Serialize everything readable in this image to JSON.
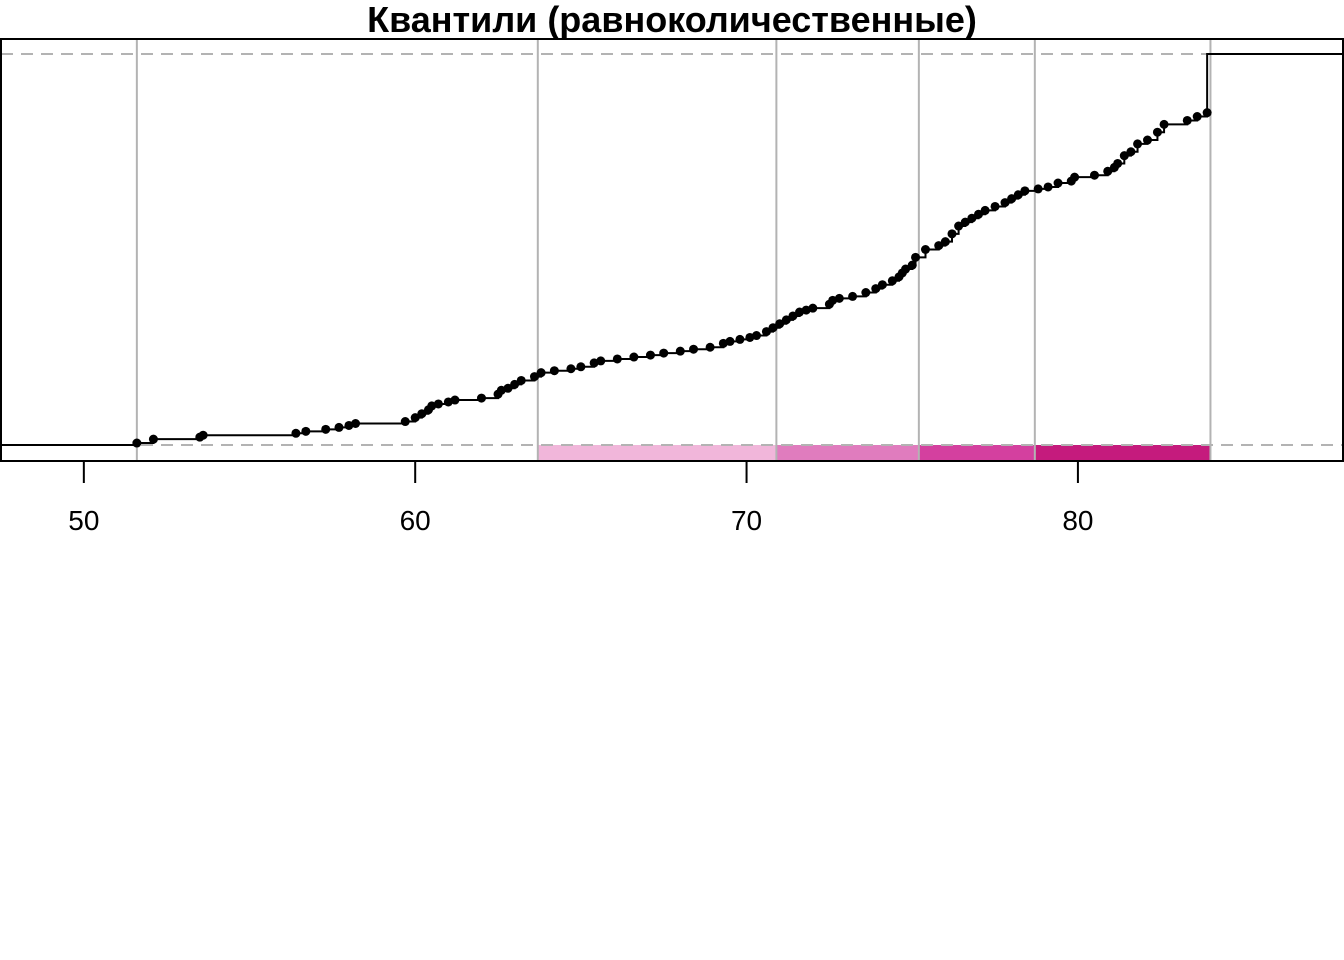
{
  "chart_data": {
    "type": "line",
    "title": "Квантили (равноколичественные)",
    "xlabel": "",
    "ylabel": "",
    "xlim": [
      47.5,
      88.0
    ],
    "ylim": [
      0,
      1
    ],
    "x_ticks": [
      50,
      60,
      70,
      80
    ],
    "x_tick_labels": [
      "50",
      "60",
      "70",
      "80"
    ],
    "grid": false,
    "legend": "none",
    "series": [
      {
        "style": "step-ecdf",
        "color": "#000000",
        "x": [
          51.6,
          52.1,
          53.5,
          53.6,
          56.4,
          56.7,
          57.3,
          57.7,
          58.0,
          58.2,
          59.7,
          60.0,
          60.2,
          60.4,
          60.5,
          60.7,
          61.0,
          61.2,
          62.0,
          62.5,
          62.6,
          62.8,
          63.0,
          63.2,
          63.6,
          63.8,
          64.2,
          64.7,
          65.0,
          65.4,
          65.6,
          66.1,
          66.6,
          67.1,
          67.5,
          68.0,
          68.4,
          68.9,
          69.3,
          69.5,
          69.8,
          70.1,
          70.3,
          70.6,
          70.8,
          71.0,
          71.2,
          71.4,
          71.6,
          71.8,
          72.0,
          72.5,
          72.6,
          72.8,
          73.2,
          73.6,
          73.9,
          74.1,
          74.4,
          74.6,
          74.7,
          74.8,
          75.0,
          75.1,
          75.4,
          75.8,
          76.0,
          76.2,
          76.4,
          76.6,
          76.8,
          77.0,
          77.2,
          77.5,
          77.8,
          78.0,
          78.2,
          78.4,
          78.8,
          79.1,
          79.4,
          79.8,
          79.9,
          80.5,
          80.9,
          81.1,
          81.2,
          81.4,
          81.6,
          81.8,
          82.1,
          82.4,
          82.6,
          83.3,
          83.6,
          83.9
        ],
        "y": [
          0.005,
          0.015,
          0.02,
          0.025,
          0.03,
          0.035,
          0.04,
          0.045,
          0.05,
          0.055,
          0.06,
          0.07,
          0.08,
          0.09,
          0.1,
          0.105,
          0.11,
          0.115,
          0.12,
          0.13,
          0.14,
          0.145,
          0.155,
          0.165,
          0.175,
          0.185,
          0.19,
          0.195,
          0.2,
          0.21,
          0.215,
          0.22,
          0.225,
          0.23,
          0.235,
          0.24,
          0.245,
          0.25,
          0.26,
          0.265,
          0.27,
          0.275,
          0.28,
          0.29,
          0.3,
          0.31,
          0.32,
          0.33,
          0.34,
          0.345,
          0.35,
          0.36,
          0.37,
          0.375,
          0.38,
          0.39,
          0.4,
          0.41,
          0.42,
          0.43,
          0.44,
          0.45,
          0.46,
          0.48,
          0.5,
          0.51,
          0.52,
          0.54,
          0.56,
          0.57,
          0.58,
          0.59,
          0.6,
          0.61,
          0.62,
          0.63,
          0.64,
          0.65,
          0.655,
          0.66,
          0.67,
          0.675,
          0.685,
          0.69,
          0.7,
          0.71,
          0.72,
          0.74,
          0.75,
          0.77,
          0.78,
          0.8,
          0.82,
          0.83,
          0.84,
          0.85
        ]
      }
    ],
    "quantile_breaks": [
      51.6,
      63.7,
      70.9,
      75.2,
      78.7,
      84.0
    ],
    "class_bands": [
      {
        "from": 63.7,
        "to": 70.9,
        "color": "#f1b6da"
      },
      {
        "from": 70.9,
        "to": 75.2,
        "color": "#e07cbe"
      },
      {
        "from": 75.2,
        "to": 78.7,
        "color": "#d4409f"
      },
      {
        "from": 78.7,
        "to": 84.0,
        "color": "#c51b7d"
      }
    ],
    "colors": {
      "break_lines": "#b3b3b3",
      "reference_lines": "#b3b3b3",
      "axis": "#000000"
    }
  }
}
